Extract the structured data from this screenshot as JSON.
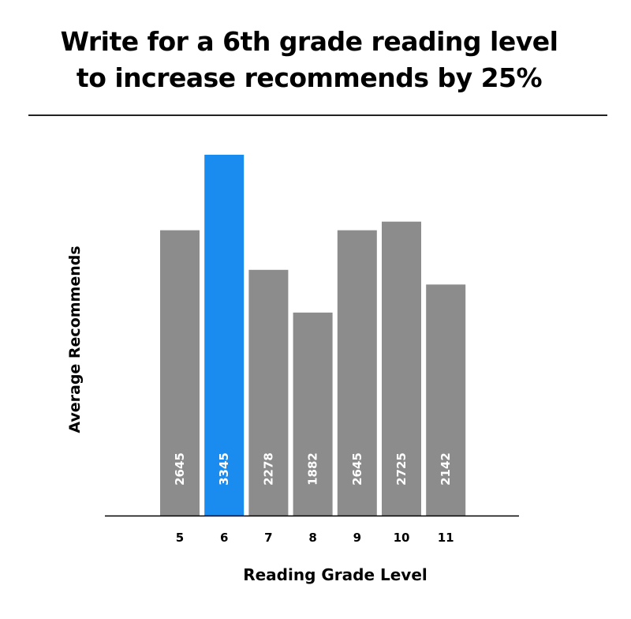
{
  "chart_data": {
    "type": "bar",
    "title_lines": [
      "Write for a 6th grade reading level",
      "to increase recommends by 25%"
    ],
    "xlabel": "Reading Grade Level",
    "ylabel": "Average Recommends",
    "categories": [
      "5",
      "6",
      "7",
      "8",
      "9",
      "10",
      "11"
    ],
    "values": [
      2645,
      3345,
      2278,
      1882,
      2645,
      2725,
      2142
    ],
    "data_labels": [
      "2645",
      "3345",
      "2278",
      "1882",
      "2645",
      "2725",
      "2142"
    ],
    "highlight_index": 1,
    "ylim": [
      0,
      3345
    ],
    "grid": false,
    "legend": "none",
    "colors": {
      "bar": "#8c8c8c",
      "highlight": "#1a8cf0",
      "label_text": "#ffffff",
      "axis": "#000000"
    }
  }
}
